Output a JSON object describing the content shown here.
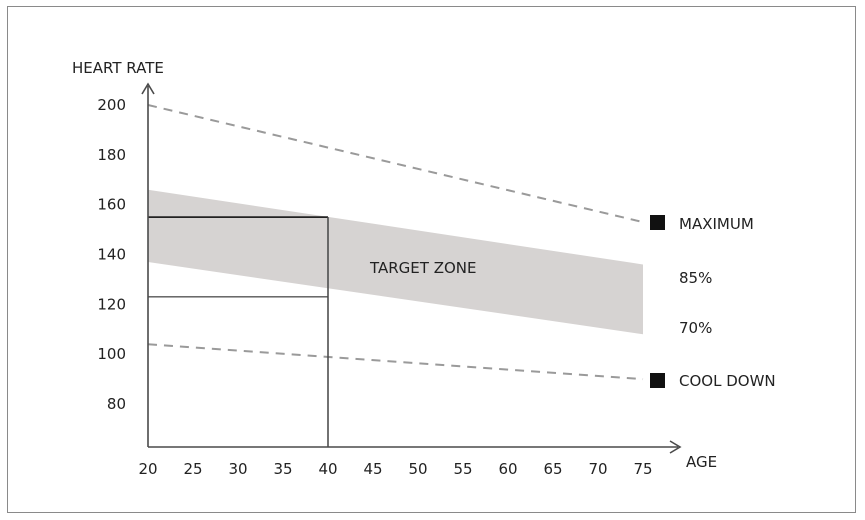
{
  "chart_data": {
    "type": "line",
    "title": "",
    "xlabel": "AGE",
    "ylabel": "HEART RATE",
    "x_ticks": [
      20,
      25,
      30,
      35,
      40,
      45,
      50,
      55,
      60,
      65,
      70,
      75
    ],
    "y_ticks": [
      80,
      100,
      120,
      140,
      160,
      180,
      200
    ],
    "xlim": [
      20,
      75
    ],
    "ylim": [
      80,
      200
    ],
    "grid": false,
    "series": [
      {
        "name": "MAXIMUM",
        "style": "dashed",
        "x": [
          20,
          75
        ],
        "y": [
          200,
          153
        ]
      },
      {
        "name": "COOL DOWN",
        "style": "dashed",
        "x": [
          20,
          75
        ],
        "y": [
          104,
          90
        ]
      }
    ],
    "band": {
      "label": "TARGET ZONE",
      "x": [
        20,
        75
      ],
      "upper": [
        166,
        136
      ],
      "lower": [
        137,
        108
      ],
      "upper_label": "85%",
      "lower_label": "70%",
      "color": "#d6d3d2"
    },
    "example_age": 40,
    "example_lines": [
      155,
      123
    ],
    "markers": {
      "maximum_label": "MAXIMUM",
      "cooldown_label": "COOL DOWN",
      "color": "#111111"
    },
    "colors": {
      "axis": "#4a4a4a",
      "dashed": "#9a9a9a",
      "text": "#222222"
    }
  }
}
